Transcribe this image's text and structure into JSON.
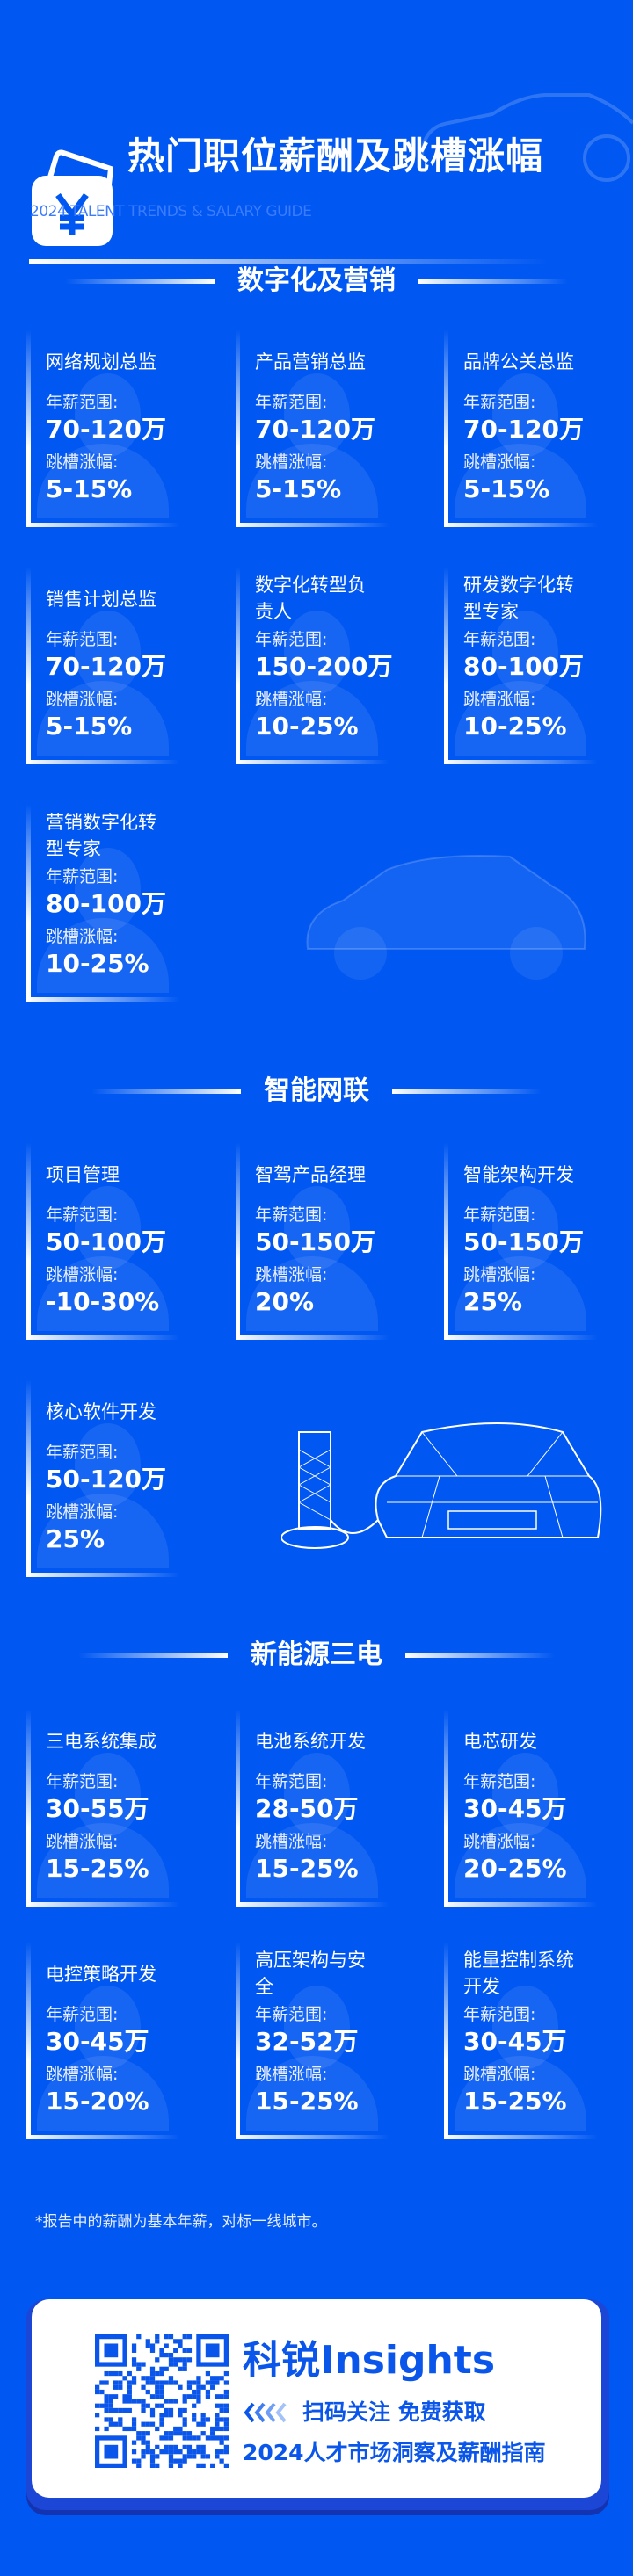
{
  "header": {
    "title": "热门职位薪酬及跳槽涨幅",
    "subtitle": "2024 TALENT TRENDS & SALARY GUIDE",
    "icon": "yen-wallet-icon"
  },
  "labels": {
    "salary": "年薪范围:",
    "raise": "跳槽涨幅:"
  },
  "sections": [
    {
      "title": "数字化及营销",
      "jobs": [
        {
          "title": "网络规划总监",
          "salary": "70-120万",
          "raise": "5-15%"
        },
        {
          "title": "产品营销总监",
          "salary": "70-120万",
          "raise": "5-15%"
        },
        {
          "title": "品牌公关总监",
          "salary": "70-120万",
          "raise": "5-15%"
        },
        {
          "title": "销售计划总监",
          "salary": "70-120万",
          "raise": "5-15%"
        },
        {
          "title": "数字化转型负责人",
          "salary": "150-200万",
          "raise": "10-25%"
        },
        {
          "title": "研发数字化转型专家",
          "salary": "80-100万",
          "raise": "10-25%"
        },
        {
          "title": "营销数字化转型专家",
          "salary": "80-100万",
          "raise": "10-25%"
        }
      ]
    },
    {
      "title": "智能网联",
      "jobs": [
        {
          "title": "项目管理",
          "salary": "50-100万",
          "raise": "-10-30%"
        },
        {
          "title": "智驾产品经理",
          "salary": "50-150万",
          "raise": "20%"
        },
        {
          "title": "智能架构开发",
          "salary": "50-150万",
          "raise": "25%"
        },
        {
          "title": "核心软件开发",
          "salary": "50-120万",
          "raise": "25%"
        }
      ]
    },
    {
      "title": "新能源三电",
      "jobs": [
        {
          "title": "三电系统集成",
          "salary": "30-55万",
          "raise": "15-25%"
        },
        {
          "title": "电池系统开发",
          "salary": "28-50万",
          "raise": "15-25%"
        },
        {
          "title": "电芯研发",
          "salary": "30-45万",
          "raise": "20-25%"
        },
        {
          "title": "电控策略开发",
          "salary": "30-45万",
          "raise": "15-20%"
        },
        {
          "title": "高压架构与安全",
          "salary": "32-52万",
          "raise": "15-25%"
        },
        {
          "title": "能量控制系统开发",
          "salary": "30-45万",
          "raise": "15-25%"
        }
      ]
    }
  ],
  "footnote": "*报告中的薪酬为基本年薪，对标一线城市。",
  "promo": {
    "brand": "科锐Insights",
    "cta": "扫码关注 免费获取",
    "guide": "2024人才市场洞察及薪酬指南",
    "qr": "qr-code"
  },
  "colors": {
    "background": "#0057F2",
    "accent": "#0A55EA"
  }
}
